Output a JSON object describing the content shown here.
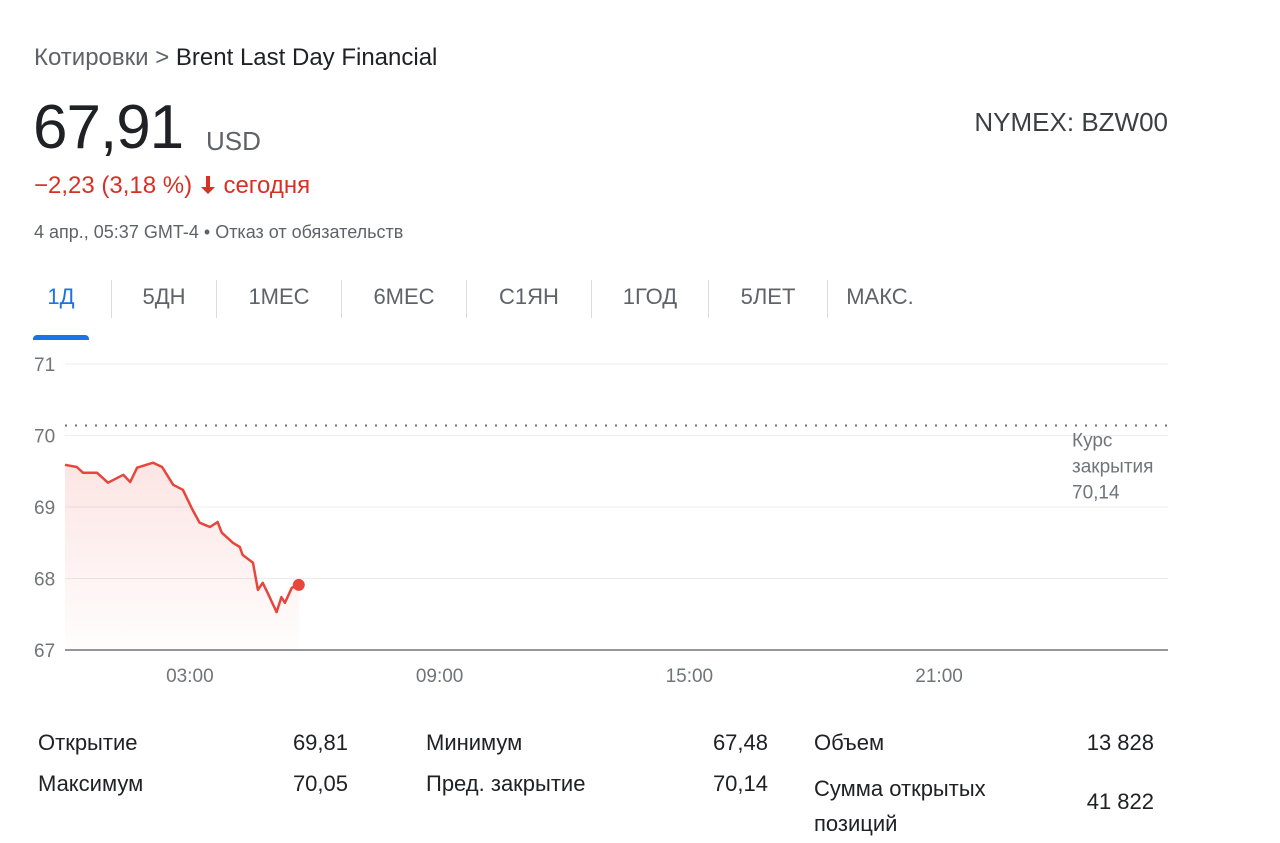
{
  "breadcrumb": {
    "prefix": "Котировки",
    "separator": ">",
    "title": "Brent Last Day Financial"
  },
  "quote": {
    "price": "67,91",
    "currency": "USD",
    "exchange": "NYMEX: BZW00",
    "change": "−2,23 (3,18 %)",
    "direction_icon": "arrow-down-icon",
    "period": "сегодня",
    "timestamp": "4 апр., 05:37 GMT-4",
    "bullet": "•",
    "disclaimer": "Отказ от обязательств"
  },
  "tabs": [
    {
      "label": "1Д",
      "active": true
    },
    {
      "label": "5ДН"
    },
    {
      "label": "1МЕС"
    },
    {
      "label": "6МЕС"
    },
    {
      "label": "С1ЯН"
    },
    {
      "label": "1ГОД"
    },
    {
      "label": "5ЛЕТ"
    },
    {
      "label": "МАКС."
    }
  ],
  "colors": {
    "line": "#e8453c",
    "accent": "#1a73e8",
    "negative": "#d93025"
  },
  "chart_data": {
    "type": "area",
    "ylim": [
      67,
      71
    ],
    "yticks": [
      "71",
      "70",
      "69",
      "68",
      "67"
    ],
    "xticks": [
      "03:00",
      "09:00",
      "15:00",
      "21:00"
    ],
    "x_range": [
      "00:00",
      "02:30 +1"
    ],
    "grid": true,
    "reference_line": {
      "label_lines": [
        "Курс",
        "закрытия",
        "70,14"
      ],
      "value": 70.14
    },
    "series": [
      {
        "x": [
          "00:00",
          "00:17",
          "00:26",
          "00:46",
          "01:02",
          "01:24",
          "01:34",
          "01:44",
          "02:07",
          "02:20",
          "02:36",
          "02:50",
          "03:04",
          "03:14",
          "03:29",
          "03:40",
          "03:46",
          "04:02",
          "04:12",
          "04:16",
          "04:31",
          "04:38",
          "04:45",
          "04:52",
          "05:05",
          "05:12",
          "05:17",
          "05:27",
          "05:37"
        ],
        "y": [
          69.59,
          69.56,
          69.48,
          69.48,
          69.34,
          69.45,
          69.35,
          69.55,
          69.62,
          69.56,
          69.31,
          69.24,
          68.96,
          68.78,
          68.72,
          68.79,
          68.64,
          68.5,
          68.44,
          68.33,
          68.22,
          67.84,
          67.94,
          67.8,
          67.53,
          67.74,
          67.66,
          67.87,
          67.91
        ]
      }
    ]
  },
  "stats": [
    [
      {
        "label": "Открытие",
        "value": "69,81"
      },
      {
        "label": "Минимум",
        "value": "67,48"
      },
      {
        "label": "Объем",
        "value": "13 828"
      }
    ],
    [
      {
        "label": "Максимум",
        "value": "70,05"
      },
      {
        "label": "Пред. закрытие",
        "value": "70,14"
      },
      {
        "label": "Сумма открытых позиций",
        "value": "41 822"
      }
    ]
  ]
}
